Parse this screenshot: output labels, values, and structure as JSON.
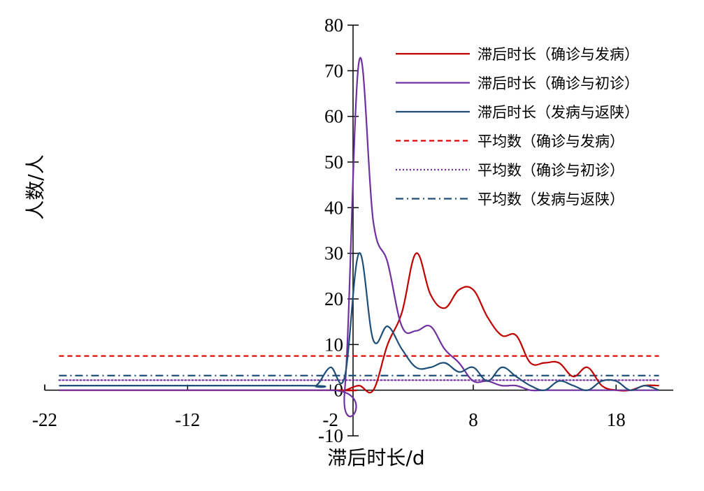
{
  "chart_data": {
    "type": "line",
    "xlabel": "滞后时长/d",
    "ylabel": "人数/人",
    "xlim": [
      -22,
      22
    ],
    "ylim": [
      -10,
      80
    ],
    "x_ticks": [
      -22,
      -12,
      -2,
      8,
      18
    ],
    "y_ticks": [
      -10,
      0,
      10,
      20,
      30,
      40,
      50,
      60,
      70,
      80
    ],
    "grid": false,
    "legend": "top-right",
    "series": [
      {
        "name": "滞后时长（确诊与发病）",
        "color": "#c00000",
        "style": "solid",
        "x": [
          -21,
          -2,
          -1,
          0,
          1,
          2,
          3,
          4,
          5,
          6,
          7,
          8,
          9,
          10,
          11,
          12,
          13,
          14,
          15,
          16,
          17,
          18,
          19,
          20,
          21
        ],
        "y": [
          0,
          0,
          0,
          1,
          0,
          10,
          17,
          30,
          21,
          18,
          22,
          22,
          16,
          12,
          12,
          6,
          6,
          6,
          3,
          5,
          1,
          0,
          0,
          1,
          1
        ]
      },
      {
        "name": "滞后时长（确诊与初诊）",
        "color": "#7030a0",
        "style": "solid",
        "x": [
          -21,
          -2,
          -1,
          0,
          1,
          2,
          3,
          4,
          5,
          6,
          7,
          8,
          9,
          10,
          11,
          12,
          13,
          14,
          15,
          16,
          17,
          18,
          19,
          20,
          21
        ],
        "y": [
          0,
          0,
          0,
          72,
          37,
          28,
          14,
          13,
          14,
          9,
          6,
          2,
          2,
          1,
          1,
          0,
          0,
          0,
          0,
          0,
          0,
          0,
          0,
          0,
          0
        ]
      },
      {
        "name": "滞后时长（发病与返陕）",
        "color": "#1f4e79",
        "style": "solid",
        "x": [
          -21,
          -4,
          -3,
          -2,
          -1,
          0,
          1,
          2,
          3,
          4,
          5,
          6,
          7,
          8,
          9,
          10,
          11,
          12,
          13,
          14,
          15,
          16,
          17,
          18,
          19,
          20,
          21
        ],
        "y": [
          1,
          1,
          1,
          5,
          3,
          30,
          11,
          14,
          9,
          5,
          5,
          6,
          4,
          5,
          2,
          5,
          3,
          1,
          0,
          2,
          1,
          0,
          2,
          2,
          0,
          1,
          0
        ]
      },
      {
        "name": "平均数（确诊与发病）",
        "color": "#e00000",
        "style": "dashed",
        "x": [
          -21,
          21
        ],
        "y": [
          7.5,
          7.5
        ]
      },
      {
        "name": "平均数（确诊与初诊）",
        "color": "#7030a0",
        "style": "dotted",
        "x": [
          -21,
          21
        ],
        "y": [
          2.2,
          2.2
        ]
      },
      {
        "name": "平均数（发病与返陕）",
        "color": "#1f4e79",
        "style": "dashdot",
        "x": [
          -21,
          21
        ],
        "y": [
          3.2,
          3.2
        ]
      }
    ]
  }
}
